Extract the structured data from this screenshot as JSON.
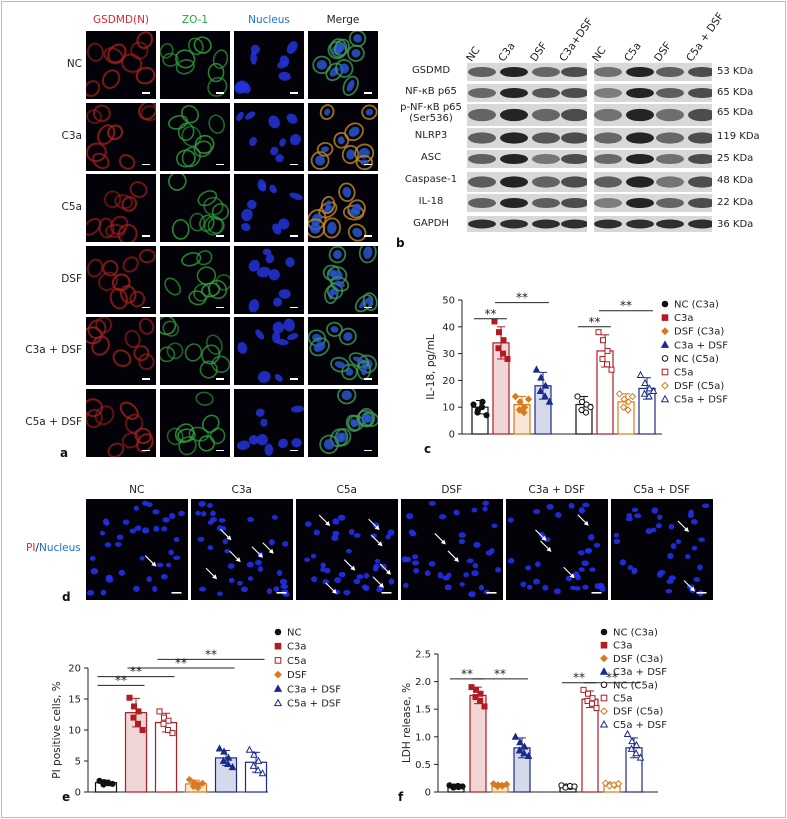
{
  "panel_a": {
    "letter": "a",
    "channels": [
      {
        "label": "GSDMD(N)",
        "color": "#e0262c"
      },
      {
        "label": "ZO-1",
        "color": "#1fa83a"
      },
      {
        "label": "Nucleus",
        "color": "#1d6fce"
      },
      {
        "label": "Merge",
        "color": "#222222"
      }
    ],
    "rows": [
      "NC",
      "C3a",
      "C5a",
      "DSF",
      "C3a + DSF",
      "C5a + DSF"
    ]
  },
  "panel_b": {
    "letter": "b",
    "lanes": [
      "NC",
      "C3a",
      "DSF",
      "C3a+DSF",
      "NC",
      "C5a",
      "DSF",
      "C5a + DSF"
    ],
    "bands": [
      {
        "name": "GSDMD",
        "size": "53 KDa"
      },
      {
        "name": "NF-κB p65",
        "size": "65 KDa"
      },
      {
        "name": "p-NF-κB p65\n(Ser536)",
        "size": "65 KDa"
      },
      {
        "name": "NLRP3",
        "size": "119 KDa"
      },
      {
        "name": "ASC",
        "size": "25 KDa"
      },
      {
        "name": "Caspase-1",
        "size": "48 KDa"
      },
      {
        "name": "IL-18",
        "size": "22 KDa"
      },
      {
        "name": "GAPDH",
        "size": "36 KDa"
      }
    ]
  },
  "panel_c": {
    "letter": "c",
    "chart_data": {
      "type": "bar",
      "ylabel": "IL-18, pg/mL",
      "ylim": [
        0,
        50
      ],
      "yticks": [
        0,
        10,
        20,
        30,
        40,
        50
      ],
      "series": [
        {
          "name": "NC (C3a)",
          "value": 10,
          "err": 2.5,
          "points": [
            11,
            9,
            12,
            8,
            10,
            7
          ],
          "color": "#111111",
          "marker": "circle-filled"
        },
        {
          "name": "C3a",
          "value": 34,
          "err": 6,
          "points": [
            42,
            38,
            35,
            32,
            30,
            28
          ],
          "color": "#b01c22",
          "marker": "square-filled"
        },
        {
          "name": "DSF (C3a)",
          "value": 11,
          "err": 3,
          "points": [
            14,
            12,
            10,
            9,
            8,
            13
          ],
          "color": "#d97a1c",
          "marker": "diamond-filled"
        },
        {
          "name": "C3a + DSF",
          "value": 18,
          "err": 5,
          "points": [
            24,
            21,
            18,
            16,
            14,
            12
          ],
          "color": "#1a2a8c",
          "marker": "triangle-filled"
        },
        {
          "name": "NC (C5a)",
          "value": 11,
          "err": 3,
          "points": [
            14,
            12,
            11,
            9,
            8,
            10
          ],
          "color": "#111111",
          "marker": "circle-open"
        },
        {
          "name": "C5a",
          "value": 31,
          "err": 6,
          "points": [
            38,
            35,
            31,
            28,
            26,
            24
          ],
          "color": "#b01c22",
          "marker": "square-open"
        },
        {
          "name": "DSF (C5a)",
          "value": 12,
          "err": 3,
          "points": [
            15,
            13,
            12,
            10,
            9,
            14
          ],
          "color": "#d97a1c",
          "marker": "diamond-open"
        },
        {
          "name": "C5a + DSF",
          "value": 17,
          "err": 4,
          "points": [
            22,
            19,
            17,
            15,
            14,
            16
          ],
          "color": "#1a2a8c",
          "marker": "triangle-open"
        }
      ],
      "significance": [
        {
          "from": 0,
          "to": 1,
          "label": "**",
          "y": 43
        },
        {
          "from": 1,
          "to": 3,
          "label": "**",
          "y": 49
        },
        {
          "from": 4,
          "to": 5,
          "label": "**",
          "y": 40
        },
        {
          "from": 5,
          "to": 7,
          "label": "**",
          "y": 46
        }
      ]
    }
  },
  "panel_d": {
    "letter": "d",
    "side_label_pi": "PI",
    "side_label_sep": "/",
    "side_label_nucleus": "Nucleus",
    "columns": [
      "NC",
      "C3a",
      "C5a",
      "DSF",
      "C3a + DSF",
      "C5a + DSF"
    ]
  },
  "panel_e": {
    "letter": "e",
    "chart_data": {
      "type": "bar",
      "ylabel": "PI positive cells, %",
      "ylim": [
        0,
        20
      ],
      "yticks": [
        0,
        5,
        10,
        15,
        20
      ],
      "series": [
        {
          "name": "NC",
          "value": 1.5,
          "err": 0.4,
          "points": [
            1.8,
            1.6,
            1.4,
            1.2,
            1.5,
            1.3
          ],
          "color": "#111111",
          "marker": "circle-filled"
        },
        {
          "name": "C3a",
          "value": 12.8,
          "err": 2.3,
          "points": [
            15.2,
            13.8,
            13,
            12,
            11,
            10
          ],
          "color": "#b01c22",
          "marker": "square-filled"
        },
        {
          "name": "C5a",
          "value": 11.2,
          "err": 1.5,
          "points": [
            13,
            12,
            11.5,
            11,
            10,
            9.5
          ],
          "color": "#b01c22",
          "marker": "square-open"
        },
        {
          "name": "DSF",
          "value": 1.3,
          "err": 0.6,
          "points": [
            2,
            1.5,
            1.2,
            0.9,
            0.7,
            1.4
          ],
          "color": "#d97a1c",
          "marker": "diamond-filled"
        },
        {
          "name": "C3a + DSF",
          "value": 5.5,
          "err": 1.2,
          "points": [
            7,
            6.5,
            5.5,
            5,
            4.5,
            4
          ],
          "color": "#1a2a8c",
          "marker": "triangle-filled"
        },
        {
          "name": "C5a + DSF",
          "value": 4.8,
          "err": 1.6,
          "points": [
            6.8,
            6,
            5,
            4.2,
            3.5,
            3
          ],
          "color": "#1a2a8c",
          "marker": "triangle-open"
        }
      ],
      "significance": [
        {
          "from": 0,
          "to": 1,
          "label": "**",
          "y": 17.2
        },
        {
          "from": 0,
          "to": 2,
          "label": "**",
          "y": 18.6
        },
        {
          "from": 1,
          "to": 4,
          "label": "**",
          "y": 20.0
        },
        {
          "from": 2,
          "to": 5,
          "label": "**",
          "y": 21.4
        }
      ]
    }
  },
  "panel_f": {
    "letter": "f",
    "chart_data": {
      "type": "bar",
      "ylabel": "LDH release, %",
      "ylim": [
        0,
        2.5
      ],
      "yticks": [
        0,
        0.5,
        1.0,
        1.5,
        2.0,
        2.5
      ],
      "ytick_labels": [
        "0",
        "0.5",
        "1.0",
        "1.5",
        "2.0",
        "2.5"
      ],
      "series": [
        {
          "name": "NC (C3a)",
          "value": 0.1,
          "err": 0.03,
          "points": [
            0.12,
            0.1,
            0.09,
            0.08,
            0.11,
            0.1
          ],
          "color": "#111111",
          "marker": "circle-filled"
        },
        {
          "name": "C3a",
          "value": 1.75,
          "err": 0.15,
          "points": [
            1.9,
            1.85,
            1.78,
            1.72,
            1.65,
            1.55
          ],
          "color": "#b01c22",
          "marker": "square-filled"
        },
        {
          "name": "DSF (C3a)",
          "value": 0.12,
          "err": 0.03,
          "points": [
            0.15,
            0.13,
            0.11,
            0.1,
            0.12,
            0.14
          ],
          "color": "#d97a1c",
          "marker": "diamond-filled"
        },
        {
          "name": "C3a + DSF",
          "value": 0.8,
          "err": 0.18,
          "points": [
            1.0,
            0.9,
            0.82,
            0.75,
            0.7,
            0.65
          ],
          "color": "#1a2a8c",
          "marker": "triangle-filled"
        },
        {
          "name": "NC (C5a)",
          "value": 0.1,
          "err": 0.03,
          "points": [
            0.12,
            0.1,
            0.09,
            0.08,
            0.11,
            0.1
          ],
          "color": "#111111",
          "marker": "circle-open"
        },
        {
          "name": "C5a",
          "value": 1.68,
          "err": 0.15,
          "points": [
            1.85,
            1.78,
            1.7,
            1.65,
            1.6,
            1.52
          ],
          "color": "#b01c22",
          "marker": "square-open"
        },
        {
          "name": "DSF (C5a)",
          "value": 0.13,
          "err": 0.03,
          "points": [
            0.16,
            0.14,
            0.12,
            0.11,
            0.13,
            0.15
          ],
          "color": "#d97a1c",
          "marker": "diamond-open"
        },
        {
          "name": "C5a + DSF",
          "value": 0.8,
          "err": 0.18,
          "points": [
            1.05,
            0.92,
            0.85,
            0.78,
            0.7,
            0.62
          ],
          "color": "#1a2a8c",
          "marker": "triangle-open"
        }
      ],
      "significance": [
        {
          "from": 0,
          "to": 1,
          "label": "**",
          "y": 2.05
        },
        {
          "from": 1,
          "to": 3,
          "label": "**",
          "y": 2.05
        },
        {
          "from": 4,
          "to": 5,
          "label": "**",
          "y": 1.98
        },
        {
          "from": 5,
          "to": 7,
          "label": "**",
          "y": 1.98
        }
      ]
    }
  }
}
